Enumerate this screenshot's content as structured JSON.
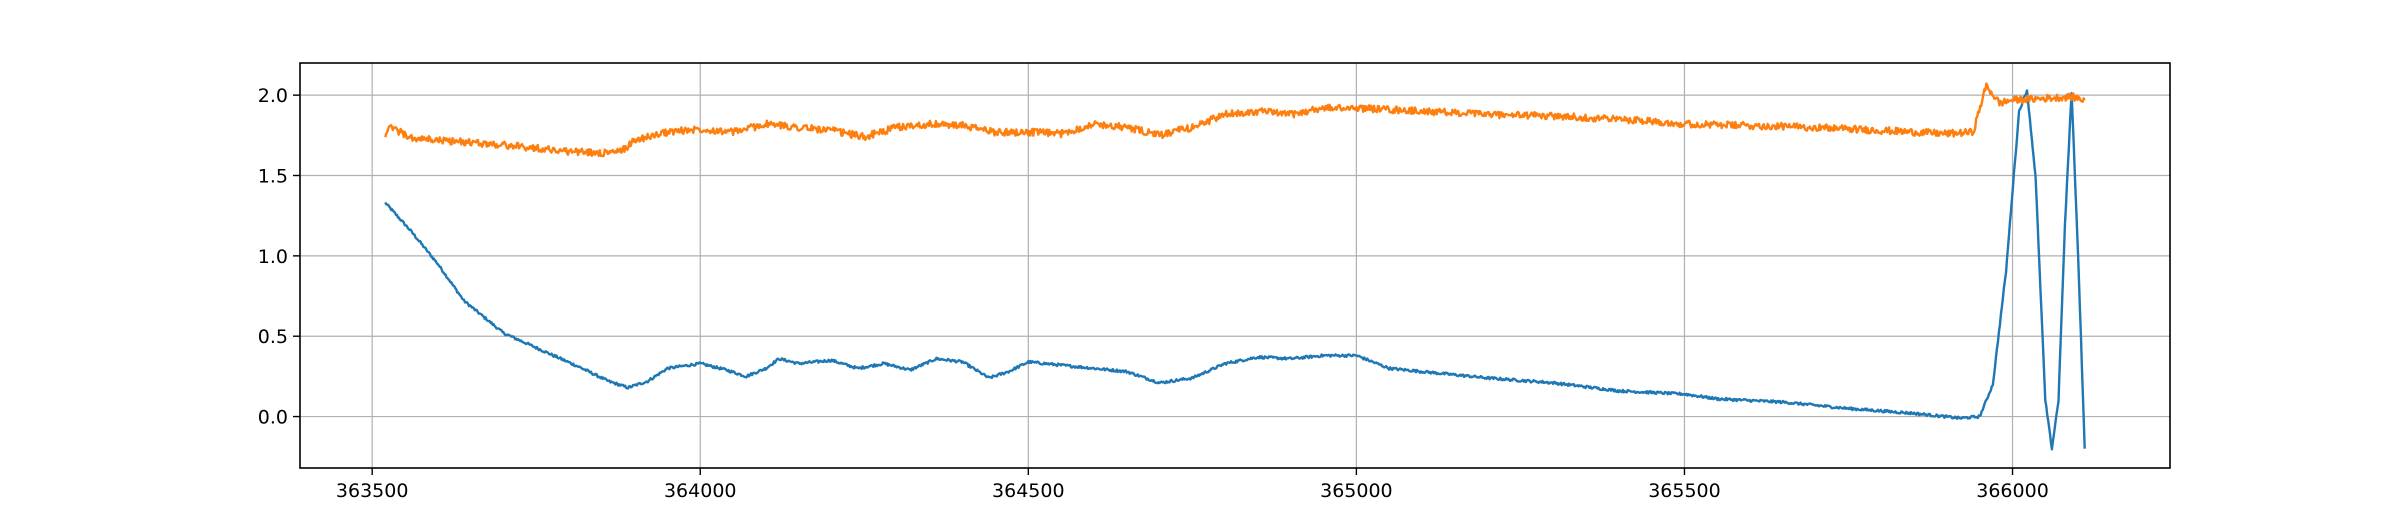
{
  "chart_data": {
    "type": "line",
    "title": "",
    "xlabel": "",
    "ylabel": "",
    "xlim": [
      363390,
      366240
    ],
    "ylim": [
      -0.32,
      2.2
    ],
    "grid": true,
    "xticks": [
      363500,
      364000,
      364500,
      365000,
      365500,
      366000
    ],
    "xtick_labels": [
      "363500",
      "364000",
      "364500",
      "365000",
      "365500",
      "366000"
    ],
    "yticks": [
      0.0,
      0.5,
      1.0,
      1.5,
      2.0
    ],
    "ytick_labels": [
      "0.0",
      "0.5",
      "1.0",
      "1.5",
      "2.0"
    ],
    "series": [
      {
        "color": "#1f77b4",
        "noise": 0.008,
        "points": [
          [
            363520,
            1.33
          ],
          [
            363560,
            1.15
          ],
          [
            363600,
            0.95
          ],
          [
            363640,
            0.72
          ],
          [
            363700,
            0.52
          ],
          [
            363760,
            0.41
          ],
          [
            363820,
            0.3
          ],
          [
            363860,
            0.22
          ],
          [
            363890,
            0.18
          ],
          [
            363920,
            0.22
          ],
          [
            363950,
            0.3
          ],
          [
            364000,
            0.33
          ],
          [
            364040,
            0.29
          ],
          [
            364070,
            0.25
          ],
          [
            364100,
            0.3
          ],
          [
            364120,
            0.36
          ],
          [
            364150,
            0.33
          ],
          [
            364200,
            0.35
          ],
          [
            364240,
            0.3
          ],
          [
            364280,
            0.33
          ],
          [
            364320,
            0.29
          ],
          [
            364360,
            0.36
          ],
          [
            364400,
            0.34
          ],
          [
            364440,
            0.24
          ],
          [
            364470,
            0.28
          ],
          [
            364500,
            0.34
          ],
          [
            364550,
            0.32
          ],
          [
            364600,
            0.3
          ],
          [
            364650,
            0.28
          ],
          [
            364700,
            0.21
          ],
          [
            364750,
            0.24
          ],
          [
            364800,
            0.33
          ],
          [
            364850,
            0.37
          ],
          [
            364900,
            0.36
          ],
          [
            364950,
            0.38
          ],
          [
            365000,
            0.38
          ],
          [
            365050,
            0.3
          ],
          [
            365100,
            0.28
          ],
          [
            365200,
            0.24
          ],
          [
            365300,
            0.21
          ],
          [
            365400,
            0.16
          ],
          [
            365500,
            0.14
          ],
          [
            365550,
            0.11
          ],
          [
            365650,
            0.09
          ],
          [
            365750,
            0.05
          ],
          [
            365850,
            0.02
          ],
          [
            365920,
            -0.01
          ],
          [
            365950,
            0.0
          ],
          [
            365970,
            0.2
          ],
          [
            365990,
            0.9
          ],
          [
            366010,
            1.9
          ],
          [
            366022,
            2.03
          ],
          [
            366035,
            1.5
          ],
          [
            366050,
            0.1
          ],
          [
            366060,
            -0.2
          ],
          [
            366070,
            0.1
          ],
          [
            366080,
            1.2
          ],
          [
            366090,
            2.02
          ],
          [
            366100,
            1.0
          ],
          [
            366110,
            -0.2
          ]
        ]
      },
      {
        "color": "#ff7f0e",
        "noise": 0.022,
        "points": [
          [
            363520,
            1.76
          ],
          [
            363530,
            1.8
          ],
          [
            363560,
            1.73
          ],
          [
            363600,
            1.72
          ],
          [
            363700,
            1.69
          ],
          [
            363800,
            1.65
          ],
          [
            363850,
            1.64
          ],
          [
            363880,
            1.65
          ],
          [
            363900,
            1.72
          ],
          [
            363950,
            1.77
          ],
          [
            364000,
            1.79
          ],
          [
            364050,
            1.77
          ],
          [
            364100,
            1.82
          ],
          [
            364150,
            1.8
          ],
          [
            364200,
            1.78
          ],
          [
            364250,
            1.74
          ],
          [
            364300,
            1.8
          ],
          [
            364350,
            1.82
          ],
          [
            364400,
            1.81
          ],
          [
            364450,
            1.77
          ],
          [
            364500,
            1.77
          ],
          [
            364550,
            1.76
          ],
          [
            364600,
            1.82
          ],
          [
            364650,
            1.8
          ],
          [
            364700,
            1.75
          ],
          [
            364750,
            1.8
          ],
          [
            364800,
            1.88
          ],
          [
            364850,
            1.9
          ],
          [
            364900,
            1.88
          ],
          [
            364950,
            1.92
          ],
          [
            365000,
            1.92
          ],
          [
            365100,
            1.9
          ],
          [
            365200,
            1.88
          ],
          [
            365300,
            1.87
          ],
          [
            365400,
            1.85
          ],
          [
            365450,
            1.84
          ],
          [
            365500,
            1.82
          ],
          [
            365600,
            1.81
          ],
          [
            365700,
            1.8
          ],
          [
            365800,
            1.78
          ],
          [
            365900,
            1.76
          ],
          [
            365940,
            1.77
          ],
          [
            365960,
            2.06
          ],
          [
            365980,
            1.95
          ],
          [
            366000,
            1.97
          ],
          [
            366050,
            1.98
          ],
          [
            366090,
            1.99
          ],
          [
            366110,
            1.97
          ]
        ]
      }
    ]
  }
}
